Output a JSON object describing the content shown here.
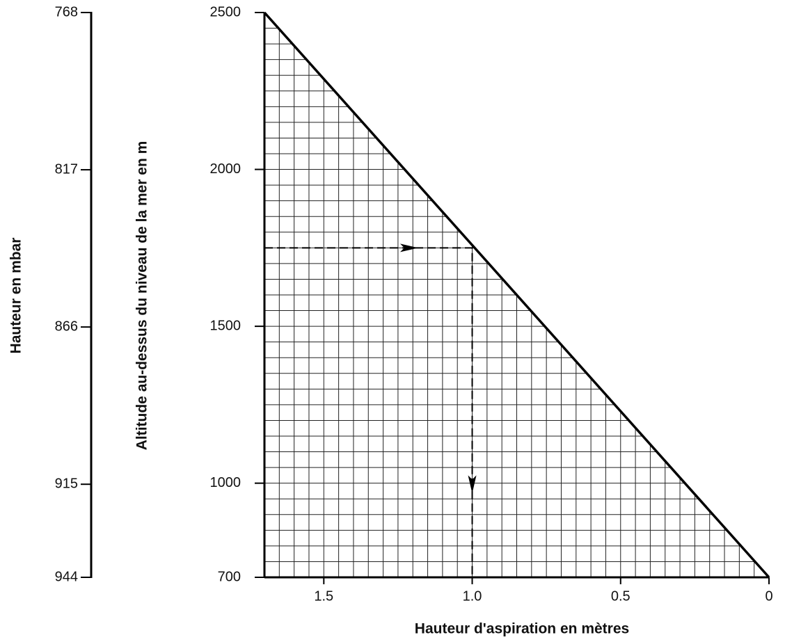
{
  "chart_data": {
    "type": "line",
    "xlabel": "Hauteur d'aspiration en mètres",
    "ylabel": "Altitude au-dessus du niveau de la mer en m",
    "y2label": "Hauteur en mbar",
    "xlim": [
      1.7,
      0
    ],
    "xticks": [
      1.5,
      {
        "value": 1.0,
        "label": "1.0"
      },
      0.5,
      0
    ],
    "ylim": [
      700,
      2500
    ],
    "yticks": [
      2500,
      2000,
      1500,
      1000,
      700
    ],
    "y2lim": [
      944,
      768
    ],
    "y2ticks": [
      768,
      817,
      866,
      915,
      944
    ],
    "xminorticks": [
      0.05,
      0.1,
      0.15,
      0.2,
      0.25,
      0.3,
      0.35,
      0.4,
      0.45,
      0.5,
      0.55,
      0.6,
      0.65,
      0.7,
      0.75,
      0.8,
      0.85,
      0.9,
      0.95,
      1.0,
      1.05,
      1.1,
      1.15,
      1.2,
      1.25,
      1.3,
      1.35,
      1.4,
      1.45,
      1.5,
      1.55,
      1.6,
      1.65
    ],
    "yminorticks": [
      750,
      800,
      850,
      900,
      950,
      1000,
      1050,
      1100,
      1150,
      1200,
      1250,
      1300,
      1350,
      1400,
      1450,
      1500,
      1550,
      1600,
      1650,
      1700,
      1750,
      1800,
      1850,
      1900,
      1950,
      2000,
      2050,
      2100,
      2150,
      2200,
      2250,
      2300,
      2350,
      2400,
      2450
    ],
    "grid": true,
    "series": [
      {
        "color": "#000000",
        "x": [
          1.7,
          0
        ],
        "values": [
          2500,
          700
        ]
      },
      {
        "color": "#000000",
        "dashed": true,
        "x": [
          1.7,
          1.0,
          1.0
        ],
        "values": [
          1750,
          1750,
          700
        ]
      }
    ]
  }
}
